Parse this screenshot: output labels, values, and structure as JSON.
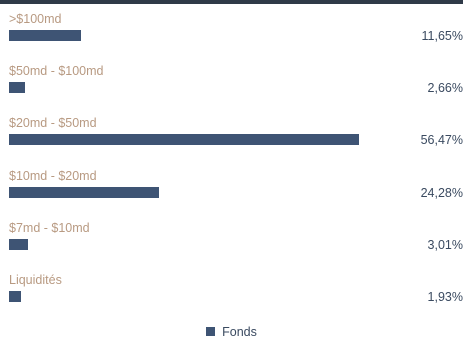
{
  "chart_data": {
    "type": "bar",
    "orientation": "horizontal",
    "categories": [
      ">$100md",
      "$50md - $100md",
      "$20md - $50md",
      "$10md - $20md",
      "$7md - $10md",
      "Liquidités"
    ],
    "series": [
      {
        "name": "Fonds",
        "values": [
          11.65,
          2.66,
          56.47,
          24.28,
          3.01,
          1.93
        ],
        "value_labels": [
          "11,65%",
          "2,66%",
          "56,47%",
          "24,28%",
          "3,01%",
          "1,93%"
        ]
      }
    ],
    "xlim": [
      0,
      57
    ],
    "grid": false,
    "legend": "bottom-center",
    "colors": {
      "bar": "#3e5474",
      "category_text": "#b89a82",
      "value_text": "#3a4a60",
      "top_rule": "#2f3a48"
    }
  }
}
